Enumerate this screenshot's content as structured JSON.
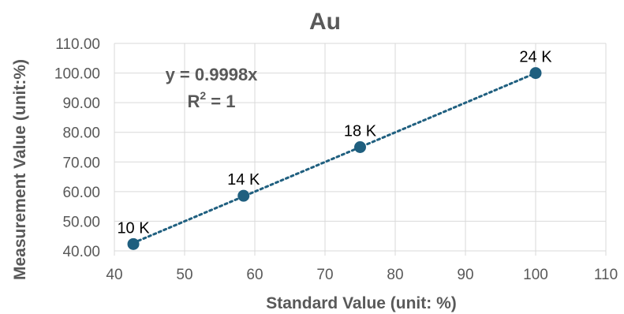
{
  "chart_data": {
    "type": "scatter",
    "title": "Au",
    "xlabel": "Standard Value (unit: %)",
    "ylabel": "Measurement Value (unit:%)",
    "xlim": [
      40,
      110
    ],
    "ylim": [
      40,
      110
    ],
    "x_ticks": [
      "40",
      "50",
      "60",
      "70",
      "80",
      "90",
      "100",
      "110"
    ],
    "y_ticks": [
      "40.00",
      "50.00",
      "60.00",
      "70.00",
      "80.00",
      "90.00",
      "100.00",
      "110.00"
    ],
    "grid": true,
    "legend": "none",
    "points": [
      {
        "x": 42.7,
        "y": 42.3,
        "label": "10 K"
      },
      {
        "x": 58.4,
        "y": 58.6,
        "label": "14 K"
      },
      {
        "x": 75.0,
        "y": 75.0,
        "label": "18 K"
      },
      {
        "x": 100.0,
        "y": 100.0,
        "label": "24 K"
      }
    ],
    "trendline": {
      "type": "linear",
      "style": "dotted",
      "slope": 0.9998,
      "intercept": 0
    },
    "annotations": {
      "equation": "y = 0.9998x",
      "r_squared_prefix": "R",
      "r_squared_sup": "2",
      "r_squared_suffix": " = 1"
    },
    "colors": {
      "marker": "#1f5f7f",
      "trendline": "#1f5f7f",
      "grid": "#d9d9d9",
      "text": "#595959"
    }
  }
}
